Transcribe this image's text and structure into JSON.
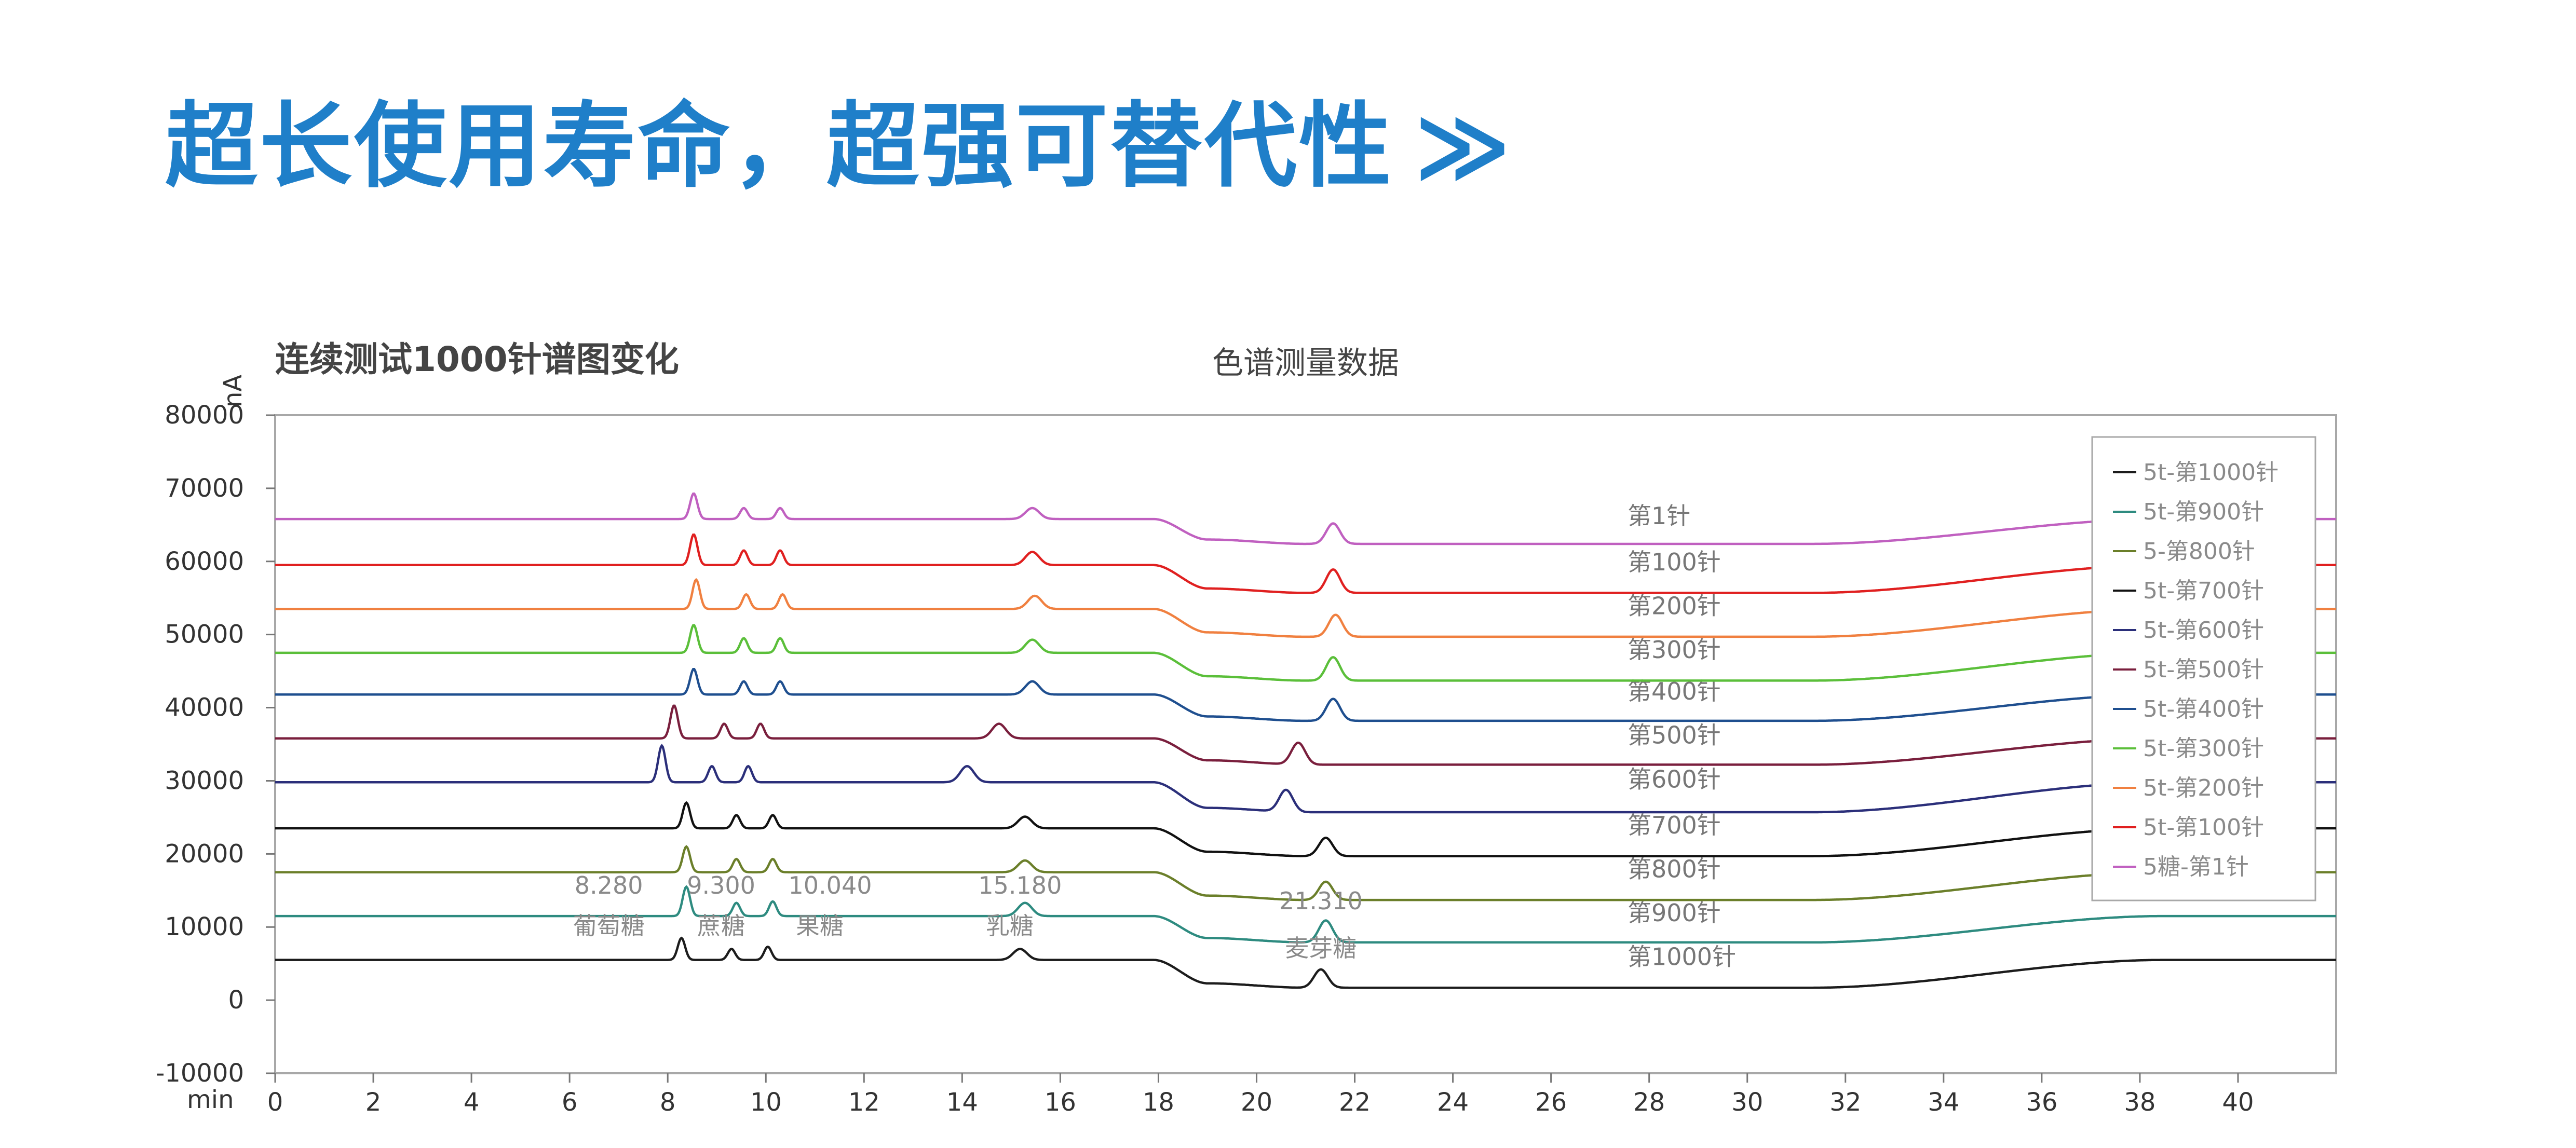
{
  "headline": {
    "text": "超长使用寿命，超强可替代性",
    "arrows": "≫"
  },
  "chart_data": {
    "type": "line",
    "title": "连续测试1000针谱图变化",
    "subtitle": "色谱测量数据",
    "ylabel": "nA",
    "xlabel": "min",
    "xlim": [
      0,
      42
    ],
    "ylim": [
      -10000,
      80000
    ],
    "x_ticks": [
      0,
      2,
      4,
      6,
      8,
      10,
      12,
      14,
      16,
      18,
      20,
      22,
      24,
      26,
      28,
      30,
      32,
      34,
      36,
      38,
      40
    ],
    "y_ticks": [
      -10000,
      0,
      10000,
      20000,
      30000,
      40000,
      50000,
      60000,
      70000,
      80000
    ],
    "grid": false,
    "legend_position": "top-right",
    "legend": [
      "5t-第1000针",
      "5t-第900针",
      "5-第800针",
      "5t-第700针",
      "5t-第600针",
      "5t-第500针",
      "5t-第400针",
      "5t-第300针",
      "5t-第200针",
      "5t-第100针",
      "5糖-第1针"
    ],
    "series": [
      {
        "name": "5t-第1000针",
        "inject_label": "第1000针",
        "color": "#1c1c1c",
        "baseline": 5500,
        "shift": 0,
        "drop": 3200,
        "peaks": [
          [
            8.28,
            3000
          ],
          [
            9.3,
            1500
          ],
          [
            10.04,
            1800
          ],
          [
            15.18,
            1500
          ],
          [
            21.31,
            2500
          ]
        ]
      },
      {
        "name": "5t-第900针",
        "inject_label": "第900针",
        "color": "#2e8b80",
        "baseline": 11500,
        "shift": 0.1,
        "drop": 3000,
        "peaks": [
          [
            8.28,
            4000
          ],
          [
            9.3,
            1800
          ],
          [
            10.04,
            2000
          ],
          [
            15.18,
            1800
          ],
          [
            21.31,
            3000
          ]
        ]
      },
      {
        "name": "5-第800针",
        "inject_label": "第800针",
        "color": "#6b7f2a",
        "baseline": 17500,
        "shift": 0.1,
        "drop": 3200,
        "peaks": [
          [
            8.28,
            3500
          ],
          [
            9.3,
            1800
          ],
          [
            10.04,
            1800
          ],
          [
            15.18,
            1600
          ],
          [
            21.31,
            2500
          ]
        ]
      },
      {
        "name": "5t-第700针",
        "inject_label": "第700针",
        "color": "#111111",
        "baseline": 23500,
        "shift": 0.1,
        "drop": 3200,
        "peaks": [
          [
            8.28,
            3500
          ],
          [
            9.3,
            1800
          ],
          [
            10.04,
            1800
          ],
          [
            15.18,
            1600
          ],
          [
            21.31,
            2500
          ]
        ]
      },
      {
        "name": "5t-第600针",
        "inject_label": "第600针",
        "color": "#2b2f7a",
        "baseline": 29800,
        "shift": -0.4,
        "drop": 3500,
        "peaks": [
          [
            8.28,
            5000
          ],
          [
            9.3,
            2200
          ],
          [
            10.04,
            2200
          ],
          [
            14.5,
            2200
          ],
          [
            21.0,
            3000
          ]
        ]
      },
      {
        "name": "5t-第500针",
        "inject_label": "第500针",
        "color": "#7a1f3d",
        "baseline": 35800,
        "shift": -0.15,
        "drop": 3000,
        "peaks": [
          [
            8.28,
            4500
          ],
          [
            9.3,
            2000
          ],
          [
            10.04,
            2000
          ],
          [
            14.9,
            2000
          ],
          [
            21.0,
            3000
          ]
        ]
      },
      {
        "name": "5t-第400针",
        "inject_label": "第400针",
        "color": "#1f4f8f",
        "baseline": 41800,
        "shift": 0.25,
        "drop": 3000,
        "peaks": [
          [
            8.28,
            3500
          ],
          [
            9.3,
            1800
          ],
          [
            10.04,
            1800
          ],
          [
            15.18,
            1800
          ],
          [
            21.31,
            3000
          ]
        ]
      },
      {
        "name": "5t-第300针",
        "inject_label": "第300针",
        "color": "#5bbf3a",
        "baseline": 47500,
        "shift": 0.25,
        "drop": 3200,
        "peaks": [
          [
            8.28,
            3800
          ],
          [
            9.3,
            2000
          ],
          [
            10.04,
            2000
          ],
          [
            15.18,
            1800
          ],
          [
            21.31,
            3200
          ]
        ]
      },
      {
        "name": "5t-第200针",
        "inject_label": "第200针",
        "color": "#f08040",
        "baseline": 53500,
        "shift": 0.3,
        "drop": 3200,
        "peaks": [
          [
            8.28,
            4000
          ],
          [
            9.3,
            2000
          ],
          [
            10.04,
            2000
          ],
          [
            15.18,
            1800
          ],
          [
            21.31,
            3000
          ]
        ]
      },
      {
        "name": "5t-第100针",
        "inject_label": "第100针",
        "color": "#e02020",
        "baseline": 59500,
        "shift": 0.25,
        "drop": 3200,
        "peaks": [
          [
            8.28,
            4200
          ],
          [
            9.3,
            2000
          ],
          [
            10.04,
            2000
          ],
          [
            15.18,
            1800
          ],
          [
            21.31,
            3200
          ]
        ]
      },
      {
        "name": "5糖-第1针",
        "inject_label": "第1针",
        "color": "#c060c0",
        "baseline": 65800,
        "shift": 0.25,
        "drop": 2800,
        "peaks": [
          [
            8.28,
            3500
          ],
          [
            9.3,
            1500
          ],
          [
            10.04,
            1500
          ],
          [
            15.18,
            1500
          ],
          [
            21.31,
            2800
          ]
        ]
      }
    ],
    "annotations": [
      {
        "label": "葡萄糖",
        "retention_time": "8.280",
        "x": 8.28
      },
      {
        "label": "蔗糖",
        "retention_time": "9.300",
        "x": 9.3
      },
      {
        "label": "果糖",
        "retention_time": "10.040",
        "x": 10.04
      },
      {
        "label": "乳糖",
        "retention_time": "15.180",
        "x": 15.18
      },
      {
        "label": "麦芽糖",
        "retention_time": "21.310",
        "x": 21.31
      }
    ]
  }
}
